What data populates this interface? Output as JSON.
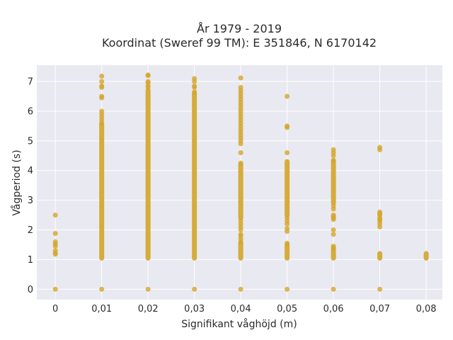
{
  "chart_data": {
    "type": "scatter",
    "title_line1": "År 1979 - 2019",
    "title_line2": "Koordinat (Sweref 99 TM): E 351846, N 6170142",
    "xlabel": "Signifikant våghöjd (m)",
    "ylabel": "Vågperiod (s)",
    "xlim": [
      -0.004,
      0.0835
    ],
    "ylim": [
      -0.35,
      7.55
    ],
    "x_ticks": [
      0,
      0.01,
      0.02,
      0.03,
      0.04,
      0.05,
      0.06,
      0.07,
      0.08
    ],
    "x_tick_labels": [
      "0",
      "0,01",
      "0,02",
      "0,03",
      "0,04",
      "0,05",
      "0,06",
      "0,07",
      "0,08"
    ],
    "y_ticks": [
      0,
      1,
      2,
      3,
      4,
      5,
      6,
      7
    ],
    "y_tick_labels": [
      "0",
      "1",
      "2",
      "3",
      "4",
      "5",
      "6",
      "7"
    ],
    "grid": true,
    "marker_color": "#d4a52a",
    "plot_bg": "#e9e9f1",
    "columns": [
      {
        "x": 0,
        "ranges": [],
        "points": [
          0,
          1.18,
          1.22,
          1.3,
          1.45,
          1.52,
          1.6,
          1.88,
          2.5
        ]
      },
      {
        "x": 0.01,
        "ranges": [
          [
            1.05,
            5.55
          ]
        ],
        "points": [
          0,
          5.6,
          5.7,
          5.8,
          5.9,
          6.0,
          6.45,
          6.5,
          6.8,
          6.85,
          7.0,
          7.18
        ]
      },
      {
        "x": 0.02,
        "ranges": [
          [
            1.05,
            6.7
          ]
        ],
        "points": [
          0,
          6.8,
          6.85,
          6.95,
          7.0,
          7.2,
          7.22
        ]
      },
      {
        "x": 0.03,
        "ranges": [
          [
            1.05,
            6.6
          ]
        ],
        "points": [
          0,
          6.65,
          6.8,
          6.85,
          7.0,
          7.1
        ]
      },
      {
        "x": 0.04,
        "ranges": [
          [
            1.05,
            1.55
          ],
          [
            2.4,
            4.2
          ]
        ],
        "points": [
          0,
          1.6,
          1.7,
          1.8,
          1.85,
          2.0,
          2.1,
          2.2,
          2.3,
          4.25,
          4.6,
          4.9,
          5.0,
          5.1,
          5.2,
          5.3,
          5.4,
          5.5,
          5.6,
          5.7,
          5.8,
          5.9,
          6.0,
          6.1,
          6.2,
          6.3,
          6.4,
          6.5,
          6.6,
          6.7,
          6.8,
          7.12
        ]
      },
      {
        "x": 0.05,
        "ranges": [
          [
            1.05,
            1.5
          ],
          [
            2.5,
            4.3
          ]
        ],
        "points": [
          0,
          1.55,
          1.95,
          2.05,
          2.2,
          2.3,
          2.4,
          4.6,
          5.45,
          5.5,
          6.5
        ]
      },
      {
        "x": 0.06,
        "ranges": [
          [
            1.05,
            1.35
          ],
          [
            2.9,
            4.3
          ]
        ],
        "points": [
          0,
          1.4,
          1.45,
          1.85,
          2.0,
          2.35,
          2.4,
          2.45,
          2.5,
          2.7,
          2.8,
          4.35,
          4.5,
          4.6,
          4.7
        ]
      },
      {
        "x": 0.07,
        "ranges": [
          [
            1.05,
            1.2
          ]
        ],
        "points": [
          0,
          2.1,
          2.2,
          2.3,
          2.35,
          2.4,
          2.5,
          2.55,
          2.6,
          4.7,
          4.78
        ]
      },
      {
        "x": 0.08,
        "ranges": [
          [
            1.05,
            1.2
          ]
        ],
        "points": []
      }
    ]
  }
}
